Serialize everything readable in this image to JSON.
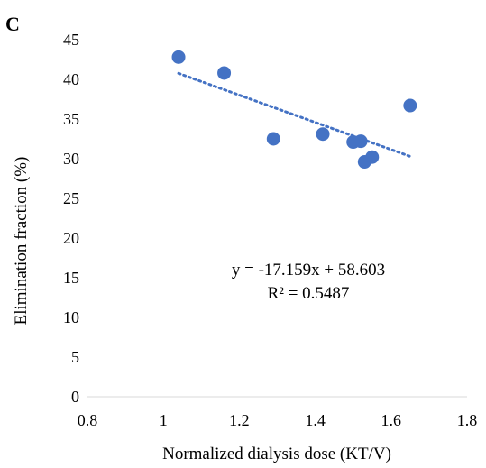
{
  "panel_label": "C",
  "chart_data": {
    "type": "scatter",
    "xlabel": "Normalized dialysis dose (KT/V)",
    "ylabel": "Elimination fraction (%)",
    "xlim": [
      0.8,
      1.8
    ],
    "ylim": [
      0,
      45
    ],
    "x_ticks": [
      0.8,
      1,
      1.2,
      1.4,
      1.6,
      1.8
    ],
    "y_ticks": [
      0,
      5,
      10,
      15,
      20,
      25,
      30,
      35,
      40,
      45
    ],
    "grid": false,
    "series": [
      {
        "points": [
          {
            "x": 1.04,
            "y": 42.8
          },
          {
            "x": 1.16,
            "y": 40.8
          },
          {
            "x": 1.29,
            "y": 32.5
          },
          {
            "x": 1.42,
            "y": 33.1
          },
          {
            "x": 1.5,
            "y": 32.1
          },
          {
            "x": 1.52,
            "y": 32.2
          },
          {
            "x": 1.53,
            "y": 29.6
          },
          {
            "x": 1.55,
            "y": 30.2
          },
          {
            "x": 1.65,
            "y": 36.7
          }
        ],
        "color": "#4472C4"
      }
    ],
    "trendline": {
      "type": "linear",
      "slope": -17.159,
      "intercept": 58.603,
      "x_range": [
        1.04,
        1.65
      ],
      "style": "dotted",
      "color": "#4472C4",
      "equation": "y = -17.159x + 58.603",
      "r_squared": "R² = 0.5487"
    }
  }
}
